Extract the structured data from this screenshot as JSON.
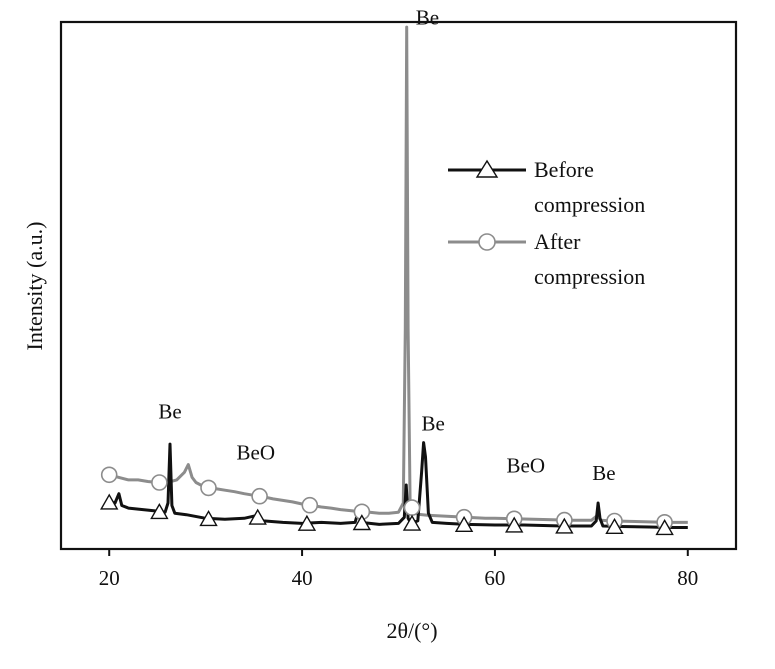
{
  "chart_data": {
    "type": "line",
    "xlabel": "2θ/(°)",
    "ylabel": "Intensity (a.u.)",
    "xlim": [
      15,
      85
    ],
    "ylim": [
      -0.3,
      10
    ],
    "x_ticks": [
      20,
      40,
      60,
      80
    ],
    "y_ticks_visible": false,
    "grid": false,
    "legend": {
      "position": "top-right"
    },
    "colors": {
      "before": "#111111",
      "after": "#8c8c8c"
    },
    "series": [
      {
        "name": "Before compression",
        "color": "#111111",
        "marker": "triangle",
        "marker_x": [
          20,
          25.2,
          30.3,
          35.4,
          40.5,
          46.2,
          51.4,
          56.8,
          62,
          67.2,
          72.4,
          77.6
        ],
        "points": [
          [
            20,
            0.62
          ],
          [
            20.6,
            0.6
          ],
          [
            21,
            0.78
          ],
          [
            21.3,
            0.55
          ],
          [
            22,
            0.5
          ],
          [
            23,
            0.48
          ],
          [
            24,
            0.46
          ],
          [
            25,
            0.44
          ],
          [
            25.8,
            0.42
          ],
          [
            26.1,
            0.6
          ],
          [
            26.3,
            1.75
          ],
          [
            26.5,
            0.55
          ],
          [
            26.8,
            0.4
          ],
          [
            28,
            0.37
          ],
          [
            30,
            0.3
          ],
          [
            32,
            0.28
          ],
          [
            34,
            0.3
          ],
          [
            35.2,
            0.35
          ],
          [
            36,
            0.25
          ],
          [
            38,
            0.22
          ],
          [
            40,
            0.2
          ],
          [
            42,
            0.22
          ],
          [
            44,
            0.2
          ],
          [
            45.5,
            0.22
          ],
          [
            45.8,
            0.42
          ],
          [
            46.1,
            0.22
          ],
          [
            48,
            0.18
          ],
          [
            50,
            0.2
          ],
          [
            50.6,
            0.32
          ],
          [
            50.8,
            0.95
          ],
          [
            51,
            0.3
          ],
          [
            51.3,
            0.2
          ],
          [
            52,
            0.25
          ],
          [
            52.4,
            1.2
          ],
          [
            52.6,
            1.78
          ],
          [
            52.8,
            1.5
          ],
          [
            53.1,
            0.4
          ],
          [
            53.5,
            0.22
          ],
          [
            55,
            0.2
          ],
          [
            57,
            0.18
          ],
          [
            60,
            0.17
          ],
          [
            63,
            0.17
          ],
          [
            65,
            0.16
          ],
          [
            67,
            0.15
          ],
          [
            70,
            0.15
          ],
          [
            70.5,
            0.25
          ],
          [
            70.7,
            0.6
          ],
          [
            70.9,
            0.3
          ],
          [
            71.2,
            0.15
          ],
          [
            73,
            0.14
          ],
          [
            76,
            0.13
          ],
          [
            78,
            0.12
          ],
          [
            80,
            0.12
          ]
        ]
      },
      {
        "name": "After compression",
        "color": "#8c8c8c",
        "marker": "circle",
        "marker_x": [
          20,
          25.2,
          30.3,
          35.6,
          40.8,
          46.2,
          51.4,
          56.8,
          62,
          67.2,
          72.4,
          77.6
        ],
        "points": [
          [
            20,
            1.15
          ],
          [
            21,
            1.1
          ],
          [
            22,
            1.05
          ],
          [
            23,
            1.05
          ],
          [
            24,
            1.02
          ],
          [
            25,
            1.0
          ],
          [
            26,
            1.0
          ],
          [
            27,
            1.05
          ],
          [
            27.8,
            1.2
          ],
          [
            28.2,
            1.35
          ],
          [
            28.6,
            1.1
          ],
          [
            29,
            1.0
          ],
          [
            30,
            0.9
          ],
          [
            31,
            0.88
          ],
          [
            32,
            0.85
          ],
          [
            33,
            0.82
          ],
          [
            34,
            0.78
          ],
          [
            35,
            0.75
          ],
          [
            36,
            0.72
          ],
          [
            37,
            0.68
          ],
          [
            38,
            0.65
          ],
          [
            39,
            0.62
          ],
          [
            40,
            0.58
          ],
          [
            41,
            0.55
          ],
          [
            42,
            0.52
          ],
          [
            43,
            0.5
          ],
          [
            44,
            0.47
          ],
          [
            45,
            0.45
          ],
          [
            46,
            0.43
          ],
          [
            47,
            0.42
          ],
          [
            48,
            0.4
          ],
          [
            49,
            0.4
          ],
          [
            50,
            0.42
          ],
          [
            50.5,
            0.6
          ],
          [
            50.7,
            4.0
          ],
          [
            50.85,
            9.9
          ],
          [
            51,
            4.0
          ],
          [
            51.2,
            0.6
          ],
          [
            51.6,
            0.42
          ],
          [
            52,
            0.38
          ],
          [
            53,
            0.36
          ],
          [
            54,
            0.35
          ],
          [
            55,
            0.34
          ],
          [
            56,
            0.33
          ],
          [
            57,
            0.32
          ],
          [
            58,
            0.31
          ],
          [
            59,
            0.3
          ],
          [
            60,
            0.3
          ],
          [
            62,
            0.29
          ],
          [
            64,
            0.28
          ],
          [
            66,
            0.27
          ],
          [
            68,
            0.26
          ],
          [
            70,
            0.26
          ],
          [
            70.6,
            0.35
          ],
          [
            71,
            0.26
          ],
          [
            72,
            0.25
          ],
          [
            74,
            0.24
          ],
          [
            76,
            0.23
          ],
          [
            78,
            0.22
          ],
          [
            80,
            0.22
          ]
        ]
      }
    ],
    "legend_entries": [
      {
        "lines": [
          "Before",
          "compression"
        ]
      },
      {
        "lines": [
          "After",
          "compression"
        ]
      }
    ],
    "annotations": [
      {
        "text": "Be",
        "x": 26.3,
        "y": 2.25
      },
      {
        "text": "BeO",
        "x": 35.2,
        "y": 1.45
      },
      {
        "text": "Be",
        "x": 53.0,
        "y": 9.95
      },
      {
        "text": "Be",
        "x": 53.6,
        "y": 2.02
      },
      {
        "text": "BeO",
        "x": 63.2,
        "y": 1.2
      },
      {
        "text": "Be",
        "x": 71.3,
        "y": 1.05
      }
    ]
  }
}
